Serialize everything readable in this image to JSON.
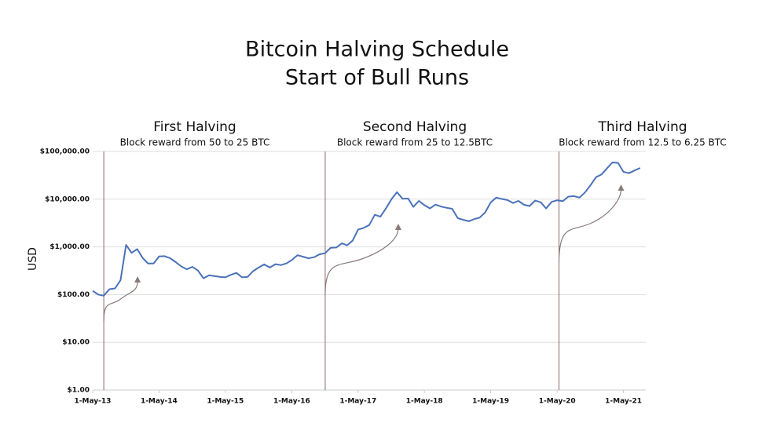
{
  "chart_data": {
    "type": "line",
    "title": "Bitcoin Halving Schedule",
    "subtitle": "Start of Bull Runs",
    "y_label": "USD",
    "log_scale": true,
    "grid": true,
    "color": "#4a72b8",
    "xlim": [
      "2013-05-01",
      "2021-09-01"
    ],
    "ylim": [
      1,
      100000
    ],
    "xticks": [
      {
        "value": "2013-05-01",
        "label": "1-May-13"
      },
      {
        "value": "2014-05-01",
        "label": "1-May-14"
      },
      {
        "value": "2015-05-01",
        "label": "1-May-15"
      },
      {
        "value": "2016-05-01",
        "label": "1-May-16"
      },
      {
        "value": "2017-05-01",
        "label": "1-May-17"
      },
      {
        "value": "2018-05-01",
        "label": "1-May-18"
      },
      {
        "value": "2019-05-01",
        "label": "1-May-19"
      },
      {
        "value": "2020-05-01",
        "label": "1-May-20"
      },
      {
        "value": "2021-05-01",
        "label": "1-May-21"
      }
    ],
    "yticks": [
      {
        "value": 1,
        "label": "$1.00"
      },
      {
        "value": 10,
        "label": "$10.00"
      },
      {
        "value": 100,
        "label": "$100.00"
      },
      {
        "value": 1000,
        "label": "$1,000.00"
      },
      {
        "value": 10000,
        "label": "$10,000.00"
      },
      {
        "value": 100000,
        "label": "$100,000.00"
      }
    ],
    "annotations": [
      {
        "date": "2013-07-01",
        "title": "First Halving",
        "text": "Block reward from 50 to 25 BTC"
      },
      {
        "date": "2016-11-01",
        "title": "Second Halving",
        "text": "Block reward from 25 to 12.5BTC"
      },
      {
        "date": "2020-05-11",
        "title": "Third Halving",
        "text": "Block reward from 12.5 to 6.25 BTC"
      }
    ],
    "x": [
      "2013-05-01",
      "2013-06-01",
      "2013-07-01",
      "2013-08-01",
      "2013-09-01",
      "2013-10-01",
      "2013-11-01",
      "2013-12-01",
      "2014-01-01",
      "2014-02-01",
      "2014-03-01",
      "2014-04-01",
      "2014-05-01",
      "2014-06-01",
      "2014-07-01",
      "2014-08-01",
      "2014-09-01",
      "2014-10-01",
      "2014-11-01",
      "2014-12-01",
      "2015-01-01",
      "2015-02-01",
      "2015-03-01",
      "2015-04-01",
      "2015-05-01",
      "2015-06-01",
      "2015-07-01",
      "2015-08-01",
      "2015-09-01",
      "2015-10-01",
      "2015-11-01",
      "2015-12-01",
      "2016-01-01",
      "2016-02-01",
      "2016-03-01",
      "2016-04-01",
      "2016-05-01",
      "2016-06-01",
      "2016-07-01",
      "2016-08-01",
      "2016-09-01",
      "2016-10-01",
      "2016-11-01",
      "2016-12-01",
      "2017-01-01",
      "2017-02-01",
      "2017-03-01",
      "2017-04-01",
      "2017-05-01",
      "2017-06-01",
      "2017-07-01",
      "2017-08-01",
      "2017-09-01",
      "2017-10-01",
      "2017-11-01",
      "2017-12-01",
      "2018-01-01",
      "2018-02-01",
      "2018-03-01",
      "2018-04-01",
      "2018-05-01",
      "2018-06-01",
      "2018-07-01",
      "2018-08-01",
      "2018-09-01",
      "2018-10-01",
      "2018-11-01",
      "2018-12-01",
      "2019-01-01",
      "2019-02-01",
      "2019-03-01",
      "2019-04-01",
      "2019-05-01",
      "2019-06-01",
      "2019-07-01",
      "2019-08-01",
      "2019-09-01",
      "2019-10-01",
      "2019-11-01",
      "2019-12-01",
      "2020-01-01",
      "2020-02-01",
      "2020-03-01",
      "2020-04-01",
      "2020-05-01",
      "2020-06-01",
      "2020-07-01",
      "2020-08-01",
      "2020-09-01",
      "2020-10-01",
      "2020-11-01",
      "2020-12-01",
      "2021-01-01",
      "2021-02-01",
      "2021-03-01",
      "2021-04-01",
      "2021-05-01",
      "2021-06-01",
      "2021-07-01",
      "2021-08-01"
    ],
    "values": [
      120,
      100,
      95,
      130,
      135,
      200,
      1100,
      750,
      900,
      580,
      450,
      450,
      630,
      640,
      580,
      480,
      390,
      340,
      380,
      320,
      220,
      255,
      245,
      235,
      230,
      260,
      285,
      230,
      235,
      310,
      370,
      430,
      370,
      435,
      415,
      450,
      530,
      670,
      625,
      575,
      610,
      700,
      740,
      960,
      970,
      1190,
      1080,
      1350,
      2300,
      2500,
      2870,
      4700,
      4300,
      6400,
      10000,
      14000,
      10200,
      10300,
      6900,
      9200,
      7500,
      6400,
      7700,
      7000,
      6600,
      6300,
      4000,
      3700,
      3450,
      3850,
      4100,
      5300,
      8600,
      10800,
      10100,
      9600,
      8300,
      9200,
      7600,
      7200,
      9350,
      8600,
      6400,
      8800,
      9500,
      9100,
      11300,
      11600,
      10800,
      13800,
      19700,
      29000,
      33100,
      45000,
      58800,
      57700,
      37300,
      35000,
      40000,
      45000
    ]
  }
}
